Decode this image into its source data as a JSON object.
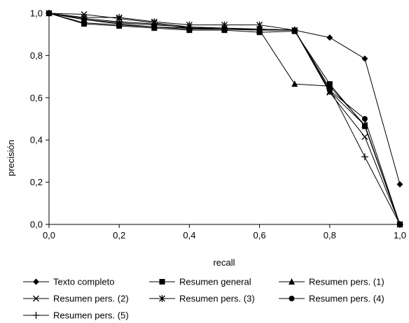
{
  "chart_data": {
    "type": "line",
    "xlabel": "recall",
    "ylabel": "precisión",
    "xlim": [
      0.0,
      1.0
    ],
    "ylim": [
      0.0,
      1.0
    ],
    "x_ticks": [
      "0,0",
      "0,2",
      "0,4",
      "0,6",
      "0,8",
      "1,0"
    ],
    "y_ticks": [
      "0,0",
      "0,2",
      "0,4",
      "0,6",
      "0,8",
      "1,0"
    ],
    "grid": false,
    "legend_position": "bottom",
    "x": [
      0.0,
      0.1,
      0.2,
      0.3,
      0.4,
      0.5,
      0.6,
      0.7,
      0.8,
      0.9,
      1.0
    ],
    "series": [
      {
        "name": "Texto completo",
        "marker": "diamond",
        "values": [
          1.0,
          0.955,
          0.945,
          0.935,
          0.93,
          0.925,
          0.92,
          0.92,
          0.885,
          0.785,
          0.19
        ]
      },
      {
        "name": "Resumen general",
        "marker": "square",
        "values": [
          1.0,
          0.95,
          0.94,
          0.93,
          0.92,
          0.92,
          0.91,
          0.915,
          0.665,
          0.465,
          0.0
        ]
      },
      {
        "name": "Resumen pers. (1)",
        "marker": "triangle",
        "values": [
          1.0,
          0.97,
          0.955,
          0.945,
          0.935,
          0.925,
          0.92,
          0.665,
          0.655,
          0.47,
          0.0
        ]
      },
      {
        "name": "Resumen pers. (2)",
        "marker": "x",
        "values": [
          1.0,
          0.995,
          0.975,
          0.955,
          0.935,
          0.93,
          0.925,
          0.92,
          0.625,
          0.415,
          0.0
        ]
      },
      {
        "name": "Resumen pers. (3)",
        "marker": "asterisk",
        "values": [
          1.0,
          0.98,
          0.98,
          0.96,
          0.945,
          0.945,
          0.945,
          0.92,
          0.63,
          0.47,
          0.0
        ]
      },
      {
        "name": "Resumen pers. (4)",
        "marker": "circle",
        "values": [
          1.0,
          0.97,
          0.95,
          0.935,
          0.925,
          0.925,
          0.925,
          0.92,
          0.635,
          0.5,
          0.0
        ]
      },
      {
        "name": "Resumen pers. (5)",
        "marker": "plus",
        "values": [
          1.0,
          0.975,
          0.96,
          0.95,
          0.93,
          0.925,
          0.925,
          0.92,
          0.645,
          0.32,
          0.0
        ]
      }
    ]
  }
}
